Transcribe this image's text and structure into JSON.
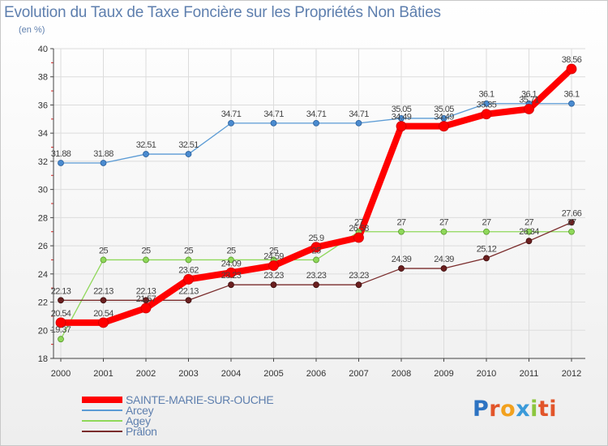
{
  "chart_data": {
    "type": "line",
    "title": "Evolution du Taux de Taxe Foncière sur les Propriétés Non Bâties",
    "ylabel": "(en %)",
    "xlabel": "",
    "ylim": [
      18,
      40
    ],
    "yticks": [
      18,
      20,
      22,
      24,
      26,
      28,
      30,
      32,
      34,
      36,
      38,
      40
    ],
    "categories": [
      "2000",
      "2001",
      "2002",
      "2003",
      "2004",
      "2005",
      "2006",
      "2007",
      "2008",
      "2009",
      "2010",
      "2011",
      "2012"
    ],
    "series": [
      {
        "name": "Arcey",
        "color": "#5b9bd5",
        "values": [
          31.88,
          31.88,
          32.51,
          32.51,
          34.71,
          34.71,
          34.71,
          34.71,
          35.05,
          35.05,
          36.1,
          36.1,
          36.1
        ],
        "labels": [
          "31.88",
          "31.88",
          "32.51",
          "32.51",
          "34.71",
          "34.71",
          "34.71",
          "34.71",
          "35.05",
          "35.05",
          "36.1",
          "36.1",
          "36.1"
        ]
      },
      {
        "name": "Agey",
        "color": "#8fd85a",
        "values": [
          19.37,
          25,
          25,
          25,
          25,
          25,
          25,
          27,
          27,
          27,
          27,
          27,
          27
        ],
        "labels": [
          "19.37",
          "25",
          "25",
          "25",
          "25",
          "25",
          "25",
          "27",
          "27",
          "27",
          "27",
          "27",
          "27"
        ]
      },
      {
        "name": "Prâlon",
        "color": "#7a2c2c",
        "values": [
          22.13,
          22.13,
          22.13,
          22.13,
          23.23,
          23.23,
          23.23,
          23.23,
          24.39,
          24.39,
          25.12,
          26.34,
          27.66
        ],
        "labels": [
          "22.13",
          "22.13",
          "22.13",
          "22.13",
          "23.23",
          "23.23",
          "23.23",
          "23.23",
          "24.39",
          "24.39",
          "25.12",
          "26.34",
          "27.66"
        ]
      },
      {
        "name": "SAINTE-MARIE-SUR-OUCHE",
        "color": "#ff0000",
        "values": [
          20.54,
          20.54,
          21.57,
          23.62,
          24.09,
          24.59,
          25.9,
          26.58,
          34.49,
          34.49,
          35.35,
          35.71,
          38.56
        ],
        "labels": [
          "20.54",
          "20.54",
          "21.57",
          "23.62",
          "24.09",
          "24.59",
          "25.9",
          "26.58",
          "34.49",
          "34.49",
          "35.35",
          "35.71",
          "38.56"
        ]
      }
    ],
    "legend_order": [
      "SAINTE-MARIE-SUR-OUCHE",
      "Arcey",
      "Agey",
      "Prâlon"
    ],
    "legend_position": "bottom-left"
  },
  "logo": {
    "letters": [
      "P",
      "r",
      "o",
      "x",
      "i",
      "ti"
    ]
  }
}
